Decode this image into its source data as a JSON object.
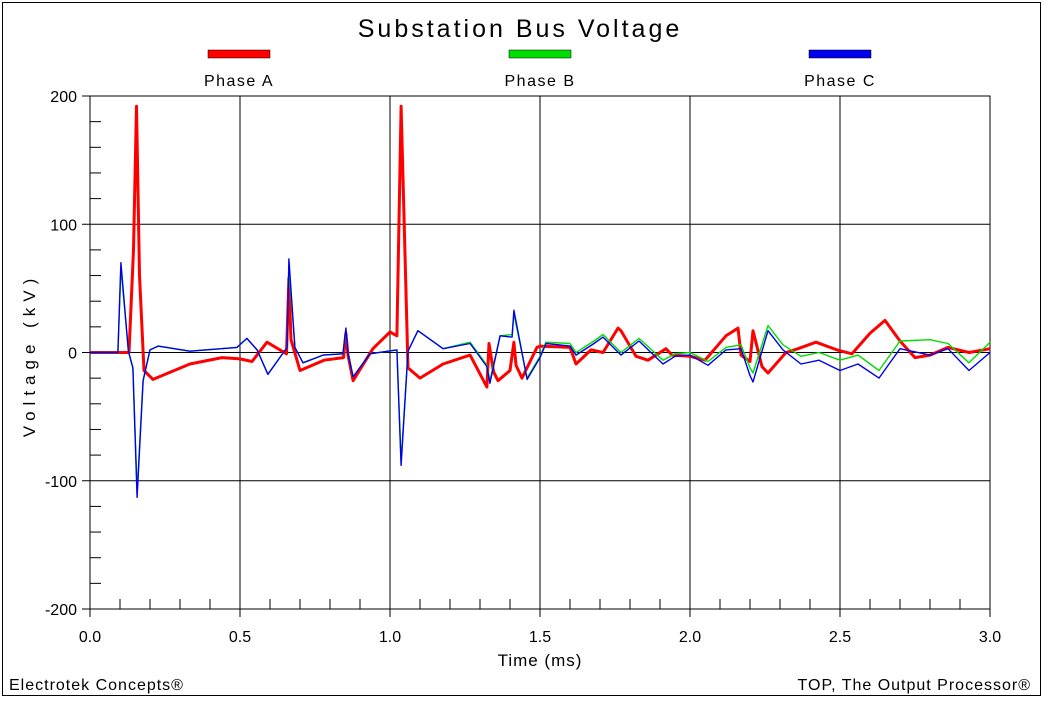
{
  "chart_data": {
    "type": "line",
    "title": "Substation Bus Voltage",
    "xlabel": "Time (ms)",
    "ylabel": "Voltage (kV)",
    "xlim": [
      0,
      3
    ],
    "ylim": [
      -200,
      200
    ],
    "x_ticks": [
      "0.0",
      "0.5",
      "1.0",
      "1.5",
      "2.0",
      "2.5",
      "3.0"
    ],
    "y_ticks": [
      "200",
      "100",
      "0",
      "-100",
      "-200"
    ],
    "grid": true,
    "legend_position": "top",
    "series": [
      {
        "name": "Phase A",
        "color": "#ff0000",
        "x": [
          0,
          0.13,
          0.145,
          0.155,
          0.165,
          0.18,
          0.21,
          0.333,
          0.44,
          0.5,
          0.54,
          0.59,
          0.655,
          0.663,
          0.67,
          0.7,
          0.78,
          0.845,
          0.853,
          0.86,
          0.877,
          0.943,
          1.0,
          1.023,
          1.037,
          1.06,
          1.1,
          1.177,
          1.267,
          1.323,
          1.33,
          1.345,
          1.36,
          1.4,
          1.413,
          1.42,
          1.44,
          1.49,
          1.5,
          1.6,
          1.62,
          1.67,
          1.71,
          1.76,
          1.77,
          1.82,
          1.86,
          1.92,
          1.94,
          2.0,
          2.05,
          2.12,
          2.16,
          2.17,
          2.2,
          2.21,
          2.24,
          2.26,
          2.32,
          2.36,
          2.42,
          2.49,
          2.54,
          2.6,
          2.65,
          2.7,
          2.75,
          2.8,
          2.86,
          2.93,
          3.0
        ],
        "y": [
          0,
          0,
          80,
          192,
          60,
          -14,
          -21,
          -9,
          -4,
          -5,
          -7,
          8,
          -1,
          58,
          10,
          -14,
          -6,
          -4,
          15,
          -2,
          -22,
          3,
          16,
          13,
          192,
          -12,
          -20,
          -9,
          -2,
          -27,
          7,
          -15,
          -22,
          -14,
          8,
          -10,
          -20,
          4,
          5,
          4,
          -9,
          2,
          0,
          19,
          17,
          -3,
          -6,
          3,
          -2,
          -3,
          -6,
          13,
          19,
          -2,
          -7,
          17,
          -11,
          -16,
          0,
          3,
          8,
          2,
          -1,
          15,
          25,
          9,
          -4,
          -2,
          4,
          0,
          3
        ]
      },
      {
        "name": "Phase B",
        "color": "#00dd00",
        "x": [
          0,
          0.093,
          0.103,
          0.128,
          0.143,
          0.157,
          0.177,
          0.2,
          0.227,
          0.333,
          0.49,
          0.523,
          0.557,
          0.593,
          0.657,
          0.663,
          0.683,
          0.71,
          0.777,
          0.843,
          0.853,
          0.86,
          0.877,
          0.933,
          1.023,
          1.037,
          1.06,
          1.093,
          1.177,
          1.267,
          1.323,
          1.333,
          1.367,
          1.407,
          1.413,
          1.457,
          1.5,
          1.52,
          1.6,
          1.62,
          1.68,
          1.71,
          1.77,
          1.83,
          1.91,
          1.95,
          2.0,
          2.06,
          2.12,
          2.17,
          2.2,
          2.21,
          2.26,
          2.31,
          2.37,
          2.43,
          2.5,
          2.56,
          2.63,
          2.7,
          2.8,
          2.86,
          2.93,
          3.0
        ],
        "y": [
          0,
          0,
          66,
          1,
          -12,
          -108,
          -22,
          2,
          5,
          1,
          4,
          11,
          2,
          -17,
          4,
          68,
          4,
          -8,
          -2,
          -1,
          17,
          -1,
          -19,
          -1,
          2,
          -85,
          1,
          17,
          3,
          8,
          -10,
          -22,
          13,
          14,
          30,
          -20,
          -3,
          8,
          7,
          0,
          9,
          14,
          0,
          11,
          -6,
          -1,
          0,
          -7,
          4,
          6,
          -12,
          -16,
          21,
          6,
          -3,
          0,
          -6,
          -2,
          -14,
          9,
          10,
          7,
          -8,
          8
        ]
      },
      {
        "name": "Phase C",
        "color": "#0000ee",
        "x": [
          0,
          0.093,
          0.103,
          0.128,
          0.143,
          0.157,
          0.177,
          0.2,
          0.227,
          0.333,
          0.49,
          0.523,
          0.557,
          0.593,
          0.657,
          0.663,
          0.683,
          0.71,
          0.777,
          0.843,
          0.853,
          0.86,
          0.877,
          0.933,
          1.023,
          1.037,
          1.06,
          1.093,
          1.177,
          1.267,
          1.323,
          1.333,
          1.367,
          1.407,
          1.413,
          1.457,
          1.5,
          1.52,
          1.6,
          1.62,
          1.68,
          1.71,
          1.77,
          1.83,
          1.91,
          1.95,
          2.0,
          2.06,
          2.12,
          2.17,
          2.2,
          2.21,
          2.26,
          2.31,
          2.37,
          2.43,
          2.5,
          2.56,
          2.63,
          2.7,
          2.8,
          2.86,
          2.93,
          3.0
        ],
        "y": [
          0,
          0,
          70,
          1,
          -12,
          -113,
          -22,
          2,
          5,
          1,
          4,
          11,
          2,
          -17,
          4,
          73,
          4,
          -8,
          -2,
          -1,
          19,
          -1,
          -19,
          -1,
          2,
          -88,
          1,
          17,
          3,
          7,
          -11,
          -24,
          13,
          12,
          33,
          -21,
          -4,
          7,
          5,
          -2,
          7,
          12,
          -2,
          9,
          -9,
          -3,
          -2,
          -10,
          2,
          3,
          -18,
          -23,
          17,
          2,
          -9,
          -6,
          -14,
          -9,
          -20,
          3,
          -2,
          3,
          -14,
          0
        ]
      }
    ],
    "footer_left": "Electrotek Concepts®",
    "footer_right": "TOP, The Output Processor®"
  }
}
